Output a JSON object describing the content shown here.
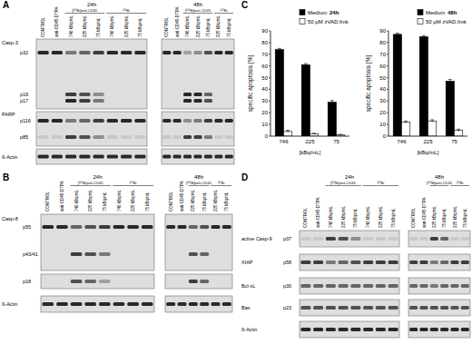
{
  "panels": {
    "A": {
      "label": "A",
      "times": [
        {
          "label": "24h",
          "lanes": [
            "CONTROL",
            "anti-CD45-DTPA"
          ],
          "groups": [
            {
              "label": "[²¹³Bi]anti-CD45",
              "lanes": [
                "746 kBq/mL",
                "225 kBq/mL",
                "75 kBq/mL"
              ]
            },
            {
              "label": "²¹³Bi",
              "lanes": [
                "746 kBq/mL",
                "225 kBq/mL",
                "75 kBq/mL"
              ]
            }
          ]
        },
        {
          "label": "48h",
          "lanes": [
            "CONTROL",
            "anti-CD45-DTPA"
          ],
          "groups": [
            {
              "label": "[²¹³Bi]anti-CD45",
              "lanes": [
                "746 kBq/mL",
                "225 kBq/mL",
                "75 kBq/mL"
              ]
            },
            {
              "label": "²¹³Bi",
              "lanes": [
                "225 kBq/mL",
                "75 kBq/mL"
              ]
            }
          ]
        }
      ],
      "strips": [
        {
          "name": "Casp-3",
          "rows": [
            {
              "label": "p32",
              "values": [
                [
                  0.9,
                  0.9,
                  0.5,
                  0.6,
                  0.8,
                  0.9,
                  0.9,
                  0.9
                ],
                [
                  0.9,
                  0.9,
                  0.3,
                  0.4,
                  0.7,
                  0.9,
                  0.9
                ]
              ]
            },
            {
              "label": "p19",
              "values": [
                [
                  0,
                  0,
                  0.8,
                  0.7,
                  0.4,
                  0,
                  0,
                  0
                ],
                [
                  0,
                  0,
                  0.9,
                  0.9,
                  0.6,
                  0,
                  0
                ]
              ]
            },
            {
              "label": "p17",
              "values": [
                [
                  0,
                  0,
                  0.9,
                  0.8,
                  0.5,
                  0,
                  0,
                  0
                ],
                [
                  0,
                  0,
                  0.9,
                  0.9,
                  0.7,
                  0,
                  0
                ]
              ]
            }
          ]
        },
        {
          "name": "PARP",
          "rows": [
            {
              "label": "p116",
              "values": [
                [
                  0.9,
                  0.9,
                  0.5,
                  0.6,
                  0.8,
                  0.9,
                  0.9,
                  0.9
                ],
                [
                  0.9,
                  0.9,
                  0.4,
                  0.5,
                  0.8,
                  0.9,
                  0.9
                ]
              ]
            },
            {
              "label": "p85",
              "values": [
                [
                  0.1,
                  0.1,
                  0.8,
                  0.7,
                  0.4,
                  0.1,
                  0.1,
                  0.1
                ],
                [
                  0.1,
                  0.1,
                  0.8,
                  0.8,
                  0.5,
                  0.1,
                  0.1
                ]
              ]
            }
          ]
        },
        {
          "name": "ß-Actin",
          "rows": [
            {
              "values": [
                [
                  0.9,
                  0.9,
                  0.9,
                  0.9,
                  0.9,
                  0.9,
                  0.9,
                  0.9
                ],
                [
                  0.9,
                  0.9,
                  0.9,
                  0.9,
                  0.9,
                  0.9,
                  0.9
                ]
              ]
            }
          ]
        }
      ]
    },
    "B": {
      "label": "B",
      "times": [
        {
          "label": "24h",
          "lanes": [
            "CONTROL",
            "anti-CD45-DTPA"
          ],
          "groups": [
            {
              "label": "[²¹³Bi]anti-CD45",
              "lanes": [
                "746 kBq/mL",
                "225 kBq/mL",
                "75 kBq/mL"
              ]
            },
            {
              "label": "²¹³Bi",
              "lanes": [
                "746 kBq/mL",
                "225 kBq/mL",
                "75 kBq/mL"
              ]
            }
          ]
        },
        {
          "label": "48h",
          "lanes": [
            "CONTROL",
            "anti-CD45-DTPA"
          ],
          "groups": [
            {
              "label": "[²¹³Bi]anti-CD45",
              "lanes": [
                "225 kBq/mL",
                "75 kBq/mL"
              ]
            },
            {
              "label": "²¹³Bi",
              "lanes": [
                "225 kBq/mL",
                "75 kBq/mL"
              ]
            }
          ]
        }
      ],
      "strips": [
        {
          "name": "Casp-8",
          "rows": [
            {
              "label": "p55",
              "values": [
                [
                  0.9,
                  0.9,
                  0.6,
                  0.7,
                  0.8,
                  0.9,
                  0.9,
                  0.9
                ],
                [
                  0.9,
                  0.9,
                  0.6,
                  0.7,
                  0.9,
                  0.9
                ]
              ]
            },
            {
              "label": "p43/41",
              "values": [
                [
                  0,
                  0,
                  0.8,
                  0.7,
                  0.5,
                  0,
                  0,
                  0
                ],
                [
                  0,
                  0,
                  0.7,
                  0.6,
                  0,
                  0
                ]
              ]
            }
          ]
        },
        {
          "rows": [
            {
              "label": "p18",
              "values": [
                [
                  0,
                  0,
                  0.7,
                  0.6,
                  0.3,
                  0,
                  0,
                  0
                ],
                [
                  0,
                  0,
                  0.8,
                  0.6,
                  0,
                  0
                ]
              ]
            }
          ]
        },
        {
          "name": "ß-Actin",
          "rows": [
            {
              "values": [
                [
                  0.9,
                  0.9,
                  0.9,
                  0.9,
                  0.9,
                  0.9,
                  0.9,
                  0.9
                ],
                [
                  0.9,
                  0.9,
                  0.9,
                  0.9,
                  0.9,
                  0.9
                ]
              ]
            }
          ]
        }
      ]
    },
    "C": {
      "label": "C"
    },
    "D": {
      "label": "D",
      "times": [
        {
          "label": "24h",
          "lanes": [
            "CONTROL",
            "anti-CD45-DTPA"
          ],
          "groups": [
            {
              "label": "[²¹³Bi]anti-CD45",
              "lanes": [
                "746 kBq/mL",
                "225 kBq/mL",
                "75 kBq/mL"
              ]
            },
            {
              "label": "²¹³Bi",
              "lanes": [
                "746 kBq/mL",
                "225 kBq/mL",
                "75 kBq/mL"
              ]
            }
          ]
        },
        {
          "label": "48h",
          "lanes": [
            "CONTROL",
            "anti-CD45-DTPA"
          ],
          "groups": [
            {
              "label": "[²¹³Bi]anti-CD45",
              "lanes": [
                "225 kBq/mL",
                "75 kBq/mL"
              ]
            },
            {
              "label": "²¹³Bi",
              "lanes": [
                "225 kBq/mL",
                "75 kBq/mL"
              ]
            }
          ]
        }
      ],
      "strips": [
        {
          "name": "active Casp-9",
          "rows": [
            {
              "label": "p37",
              "values": [
                [
                  0.1,
                  0.1,
                  0.8,
                  0.7,
                  0.4,
                  0.1,
                  0.1,
                  0.1
                ],
                [
                  0.1,
                  0.1,
                  0.8,
                  0.6,
                  0.1,
                  0.1
                ]
              ]
            }
          ]
        },
        {
          "name": "XIAP",
          "rows": [
            {
              "label": "p58",
              "values": [
                [
                  0.8,
                  0.8,
                  0.5,
                  0.6,
                  0.7,
                  0.8,
                  0.8,
                  0.8
                ],
                [
                  0.8,
                  0.8,
                  0.5,
                  0.6,
                  0.8,
                  0.8
                ]
              ]
            }
          ]
        },
        {
          "name": "Bcl-xL",
          "rows": [
            {
              "label": "p30",
              "values": [
                [
                  0.6,
                  0.6,
                  0.6,
                  0.6,
                  0.6,
                  0.6,
                  0.6,
                  0.6
                ],
                [
                  0.6,
                  0.6,
                  0.5,
                  0.6,
                  0.6,
                  0.6
                ]
              ]
            }
          ]
        },
        {
          "name": "Bax",
          "rows": [
            {
              "label": "p23",
              "values": [
                [
                  0.7,
                  0.7,
                  0.7,
                  0.7,
                  0.7,
                  0.7,
                  0.7,
                  0.7
                ],
                [
                  0.7,
                  0.7,
                  0.7,
                  0.7,
                  0.7,
                  0.7
                ]
              ]
            }
          ]
        },
        {
          "name": "ß-Actin",
          "rows": [
            {
              "values": [
                [
                  0.9,
                  0.9,
                  0.9,
                  0.9,
                  0.9,
                  0.9,
                  0.9,
                  0.9
                ],
                [
                  0.9,
                  0.9,
                  0.9,
                  0.9,
                  0.9,
                  0.9
                ]
              ]
            }
          ]
        }
      ]
    }
  },
  "chart_data": [
    {
      "type": "bar",
      "title": "24h",
      "categories": [
        "746",
        "225",
        "75"
      ],
      "x_label": "[kBq/mL]",
      "y_label": "specific apoptosis [%]",
      "series": [
        {
          "name": "Medium",
          "color": "#000000",
          "values": [
            74,
            61,
            29
          ],
          "errors": [
            1,
            1,
            1.5
          ]
        },
        {
          "name": "50 µM zVAD.fmk",
          "color": "#ffffff",
          "values": [
            4,
            2,
            1
          ],
          "errors": [
            1,
            0.5,
            0.5
          ]
        }
      ],
      "ylim": [
        0,
        90
      ],
      "yticks": [
        0,
        10,
        20,
        30,
        40,
        50,
        60,
        70,
        80,
        90
      ],
      "legend": "top"
    },
    {
      "type": "bar",
      "title": "48h",
      "categories": [
        "746",
        "225",
        "75"
      ],
      "x_label": "[kBq/mL]",
      "y_label": "specific apoptosis [%]",
      "series": [
        {
          "name": "Medium",
          "color": "#000000",
          "values": [
            87,
            85,
            47
          ],
          "errors": [
            1,
            1,
            1.5
          ]
        },
        {
          "name": "50 µM zVAD.fmk",
          "color": "#ffffff",
          "values": [
            12,
            13,
            5
          ],
          "errors": [
            1,
            1,
            1
          ]
        }
      ],
      "ylim": [
        0,
        90
      ],
      "yticks": [
        0,
        10,
        20,
        30,
        40,
        50,
        60,
        70,
        80,
        90
      ],
      "legend": "top"
    }
  ]
}
